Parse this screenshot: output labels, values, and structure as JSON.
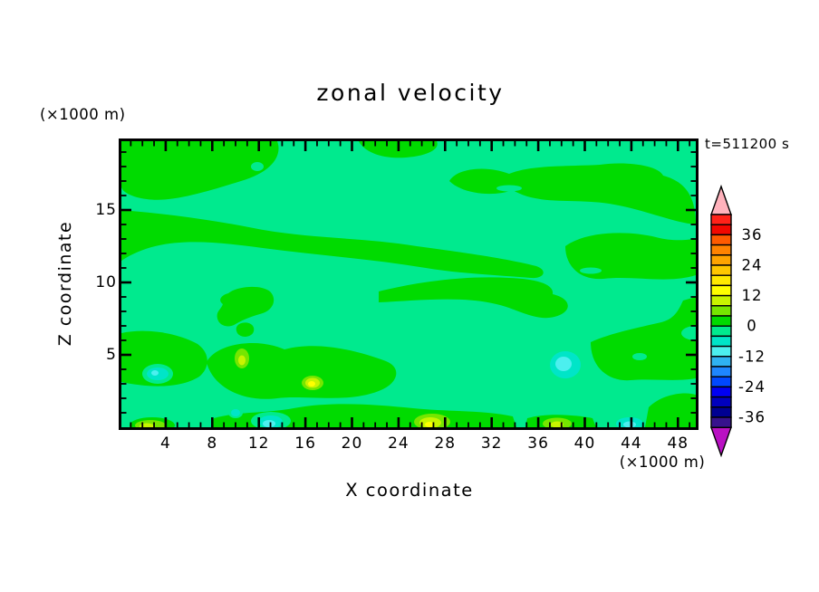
{
  "title": "zonal velocity",
  "time_label": "t=511200 s",
  "units": {
    "top_left": "(×1000 m)",
    "bottom_right": "(×1000 m)"
  },
  "x_axis": {
    "title": "X coordinate",
    "tick_labels": [
      "4",
      "8",
      "12",
      "16",
      "20",
      "24",
      "28",
      "32",
      "36",
      "40",
      "44",
      "48"
    ],
    "minor_from": 1,
    "minor_to": 49,
    "major_step": 4,
    "range": [
      0,
      49.5
    ]
  },
  "z_axis": {
    "title": "Z coordinate",
    "tick_labels": [
      "5",
      "10",
      "15"
    ],
    "minor_from": 1,
    "minor_to": 19,
    "major_step": 5,
    "range": [
      0,
      19.8
    ]
  },
  "palette": {
    "spring": "#00EA8E",
    "green": "#00DB00",
    "chartreuse": "#76E600",
    "yellow_green": "#C8F400",
    "yellow": "#FFFF00",
    "turquoise": "#00E5C8",
    "cyan": "#4CEFEF",
    "frame": "#000000"
  },
  "colorbar": {
    "over_color": "#FFB2BC",
    "under_color": "#B911C3",
    "labels": [
      "36",
      "24",
      "12",
      "0",
      "-12",
      "-24",
      "-36"
    ],
    "band_width": 4,
    "segments": [
      {
        "lo": 40,
        "hi": 44,
        "color": "#FF2219"
      },
      {
        "lo": 36,
        "hi": 40,
        "color": "#F20800"
      },
      {
        "lo": 32,
        "hi": 36,
        "color": "#FF5A00"
      },
      {
        "lo": 28,
        "hi": 32,
        "color": "#FF8300"
      },
      {
        "lo": 24,
        "hi": 28,
        "color": "#FFA400"
      },
      {
        "lo": 20,
        "hi": 24,
        "color": "#FFC700"
      },
      {
        "lo": 16,
        "hi": 20,
        "color": "#FFE900"
      },
      {
        "lo": 12,
        "hi": 16,
        "color": "#FFFF00"
      },
      {
        "lo": 8,
        "hi": 12,
        "color": "#C8F400"
      },
      {
        "lo": 4,
        "hi": 8,
        "color": "#76E600"
      },
      {
        "lo": 0,
        "hi": 4,
        "color": "#00DB00"
      },
      {
        "lo": -4,
        "hi": 0,
        "color": "#00EA8E"
      },
      {
        "lo": -8,
        "hi": -4,
        "color": "#00E5C8"
      },
      {
        "lo": -12,
        "hi": -8,
        "color": "#4CEFEF"
      },
      {
        "lo": -16,
        "hi": -12,
        "color": "#2FB2F2"
      },
      {
        "lo": -20,
        "hi": -16,
        "color": "#1E86FF"
      },
      {
        "lo": -24,
        "hi": -20,
        "color": "#0048FF"
      },
      {
        "lo": -28,
        "hi": -24,
        "color": "#0000F2"
      },
      {
        "lo": -32,
        "hi": -28,
        "color": "#0000BE"
      },
      {
        "lo": -36,
        "hi": -32,
        "color": "#000092"
      },
      {
        "lo": -40,
        "hi": -36,
        "color": "#37128D"
      }
    ]
  },
  "chart_data": {
    "type": "filled_contour",
    "title": "zonal velocity",
    "xlabel": "X coordinate (×1000 m)",
    "ylabel": "Z coordinate (×1000 m)",
    "time": "t=511200 s",
    "x_range": [
      0,
      49.5
    ],
    "z_range": [
      0,
      19.8
    ],
    "contour_interval": 4,
    "colorbar_labeled_levels": [
      36,
      24,
      12,
      0,
      -12,
      -24,
      -36
    ],
    "field_summary": "Zonal velocity field is weak (mostly between -4 and +4): interleaved wavy horizontal bands of the -4..0 band (spring green) and 0..4 band (green) across the whole domain, with a few small stronger anomalies near the bottom of the domain.",
    "dominant_bands": [
      {
        "range": [
          -4,
          0
        ],
        "color": "#00EA8E"
      },
      {
        "range": [
          0,
          4
        ],
        "color": "#00DB00"
      }
    ],
    "local_extrema": [
      {
        "x": 2.5,
        "z": 0.2,
        "sign": "positive",
        "band": "8..12"
      },
      {
        "x": 10.4,
        "z": 4.8,
        "sign": "positive",
        "band": "8..12"
      },
      {
        "x": 16.5,
        "z": 3.1,
        "sign": "positive",
        "band": "12..16"
      },
      {
        "x": 26.8,
        "z": 0.4,
        "sign": "positive",
        "band": "12..16"
      },
      {
        "x": 37.6,
        "z": 0.3,
        "sign": "positive",
        "band": "8..12"
      },
      {
        "x": 3.1,
        "z": 3.7,
        "sign": "negative",
        "band": "-12..-8"
      },
      {
        "x": 9.8,
        "z": 1.0,
        "sign": "negative",
        "band": "-8..-4"
      },
      {
        "x": 13.0,
        "z": 0.3,
        "sign": "negative",
        "band": "-12..-8"
      },
      {
        "x": 38.3,
        "z": 4.3,
        "sign": "negative",
        "band": "-12..-8"
      },
      {
        "x": 43.8,
        "z": 0.3,
        "sign": "negative",
        "band": "-12..-8"
      }
    ]
  }
}
